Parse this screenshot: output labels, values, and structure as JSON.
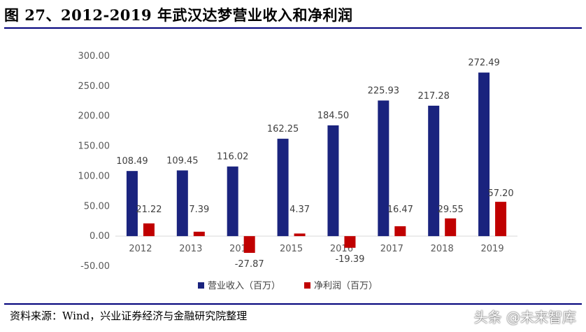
{
  "header": {
    "title": "图 27、2012-2019 年武汉达梦营业收入和净利润"
  },
  "footer": {
    "source": "资料来源：Wind，兴业证券经济与金融研究院整理",
    "watermark": "头条 @未来智库"
  },
  "chart_data": {
    "type": "bar",
    "categories": [
      "2012",
      "2013",
      "2014",
      "2015",
      "2016",
      "2017",
      "2018",
      "2019"
    ],
    "series": [
      {
        "name": "营业收入（百万）",
        "color": "#1a237e",
        "values": [
          108.49,
          109.45,
          116.02,
          162.25,
          184.5,
          225.93,
          217.28,
          272.49
        ],
        "labels": [
          "108.49",
          "109.45",
          "116.02",
          "162.25",
          "184.50",
          "225.93",
          "217.28",
          "272.49"
        ]
      },
      {
        "name": "净利润（百万）",
        "color": "#c00000",
        "values": [
          21.22,
          7.39,
          -27.87,
          4.37,
          -19.39,
          16.47,
          29.55,
          57.2
        ],
        "labels": [
          "21.22",
          "7.39",
          "-27.87",
          "4.37",
          "-19.39",
          "16.47",
          "29.55",
          "57.20"
        ]
      }
    ],
    "ylim": [
      -50,
      300
    ],
    "yticks": [
      -50,
      0,
      50,
      100,
      150,
      200,
      250,
      300
    ],
    "ytick_labels": [
      "-50.00",
      "0.00",
      "50.00",
      "100.00",
      "150.00",
      "200.00",
      "250.00",
      "300.00"
    ],
    "grid": false,
    "legend": "bottom"
  }
}
